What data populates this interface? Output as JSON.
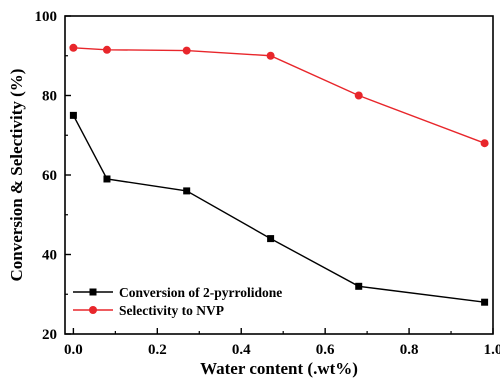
{
  "chart_data": {
    "type": "line",
    "title": "",
    "xlabel": "Water content (.wt%)",
    "ylabel": "Conversion & Selectivity (%)",
    "xlim": [
      -0.02,
      1.0
    ],
    "ylim": [
      20,
      100
    ],
    "x_ticks": [
      "0.0",
      "0.2",
      "0.4",
      "0.6",
      "0.8",
      "1.0"
    ],
    "y_ticks": [
      "20",
      "40",
      "60",
      "80",
      "100"
    ],
    "grid": false,
    "legend_position": "bottom-left",
    "series": [
      {
        "name": "Conversion of 2-pyrrolidone",
        "color": "#000000",
        "marker": "square",
        "x": [
          0.0,
          0.08,
          0.27,
          0.47,
          0.68,
          0.98
        ],
        "y": [
          75,
          59,
          56,
          44,
          32,
          28
        ]
      },
      {
        "name": "Selectivity to NVP",
        "color": "#e8262b",
        "marker": "circle",
        "x": [
          0.0,
          0.08,
          0.27,
          0.47,
          0.68,
          0.98
        ],
        "y": [
          92,
          91.5,
          91.3,
          90,
          80,
          68
        ]
      }
    ]
  }
}
